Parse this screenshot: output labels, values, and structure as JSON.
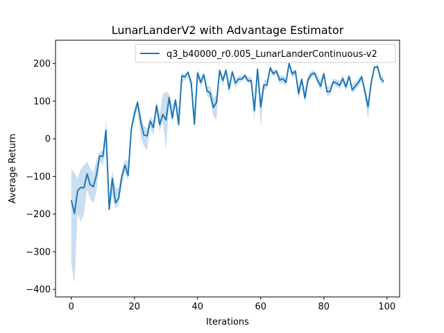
{
  "chart_data": {
    "type": "line",
    "title": "LunarLanderV2 with Advantage Estimator",
    "xlabel": "Iterations",
    "ylabel": "Average Return",
    "xlim": [
      -5,
      104
    ],
    "ylim": [
      -420,
      262
    ],
    "xticks": [
      0,
      20,
      40,
      60,
      80,
      100
    ],
    "yticks": [
      -400,
      -300,
      -200,
      -100,
      0,
      100,
      200
    ],
    "ytick_labels": [
      "−400",
      "−300",
      "−200",
      "−100",
      "0",
      "100",
      "200"
    ],
    "grid": false,
    "legend_position": "top-right",
    "colors": {
      "line": "#1f77b4",
      "band": "#a6c8e6"
    },
    "series": [
      {
        "name": "q3_b40000_r0.005_LunarLanderContinuous-v2",
        "x": [
          0,
          1,
          2,
          3,
          4,
          5,
          6,
          7,
          8,
          9,
          10,
          11,
          12,
          13,
          14,
          15,
          16,
          17,
          18,
          19,
          20,
          21,
          22,
          23,
          24,
          25,
          26,
          27,
          28,
          29,
          30,
          31,
          32,
          33,
          34,
          35,
          36,
          37,
          38,
          39,
          40,
          41,
          42,
          43,
          44,
          45,
          46,
          47,
          48,
          49,
          50,
          51,
          52,
          53,
          54,
          55,
          56,
          57,
          58,
          59,
          60,
          61,
          62,
          63,
          64,
          65,
          66,
          67,
          68,
          69,
          70,
          71,
          72,
          73,
          74,
          75,
          76,
          77,
          78,
          79,
          80,
          81,
          82,
          83,
          84,
          85,
          86,
          87,
          88,
          89,
          90,
          91,
          92,
          93,
          94,
          95,
          96,
          97,
          98,
          99
        ],
        "y": [
          -163,
          -198,
          -138,
          -129,
          -130,
          -93,
          -122,
          -127,
          -95,
          -45,
          -47,
          23,
          -187,
          -105,
          -170,
          -158,
          -100,
          -70,
          -97,
          25,
          67,
          97,
          45,
          10,
          8,
          47,
          30,
          88,
          38,
          65,
          50,
          110,
          55,
          103,
          38,
          167,
          165,
          177,
          148,
          39,
          175,
          150,
          170,
          127,
          122,
          83,
          97,
          182,
          155,
          182,
          133,
          178,
          148,
          159,
          159,
          168,
          154,
          155,
          75,
          185,
          85,
          143,
          143,
          188,
          173,
          180,
          156,
          160,
          150,
          200,
          172,
          180,
          120,
          158,
          108,
          157,
          171,
          175,
          156,
          140,
          173,
          125,
          126,
          152,
          148,
          142,
          160,
          138,
          166,
          130,
          140,
          150,
          165,
          125,
          85,
          148,
          190,
          192,
          160,
          152
        ],
        "band_upper": [
          -80,
          -90,
          -105,
          -80,
          -70,
          -60,
          -80,
          -90,
          -55,
          -35,
          -30,
          50,
          -150,
          -85,
          -130,
          -130,
          -85,
          -55,
          -60,
          40,
          80,
          105,
          65,
          35,
          28,
          60,
          48,
          100,
          65,
          120,
          125,
          120,
          85,
          110,
          80,
          175,
          170,
          180,
          160,
          75,
          185,
          162,
          178,
          140,
          140,
          110,
          115,
          190,
          165,
          190,
          150,
          185,
          160,
          168,
          165,
          175,
          165,
          165,
          100,
          190,
          110,
          155,
          158,
          195,
          182,
          185,
          168,
          168,
          162,
          200,
          182,
          185,
          140,
          165,
          130,
          168,
          180,
          182,
          168,
          155,
          180,
          140,
          140,
          160,
          158,
          155,
          170,
          150,
          172,
          145,
          152,
          160,
          170,
          140,
          105,
          158,
          192,
          195,
          172,
          160
        ],
        "band_lower": [
          -330,
          -385,
          -200,
          -220,
          -200,
          -135,
          -160,
          -170,
          -140,
          -60,
          -70,
          -20,
          -195,
          -150,
          -185,
          -175,
          -120,
          -90,
          -110,
          15,
          50,
          80,
          5,
          -20,
          -30,
          30,
          10,
          70,
          20,
          45,
          -30,
          90,
          40,
          95,
          28,
          150,
          155,
          165,
          130,
          30,
          165,
          138,
          160,
          115,
          105,
          60,
          50,
          170,
          140,
          170,
          118,
          170,
          135,
          150,
          152,
          160,
          148,
          148,
          50,
          175,
          30,
          130,
          135,
          180,
          165,
          172,
          145,
          150,
          140,
          190,
          162,
          170,
          105,
          148,
          95,
          148,
          162,
          168,
          145,
          128,
          165,
          115,
          115,
          145,
          138,
          132,
          150,
          128,
          158,
          122,
          130,
          140,
          155,
          115,
          50,
          138,
          185,
          188,
          150,
          145
        ]
      }
    ]
  }
}
